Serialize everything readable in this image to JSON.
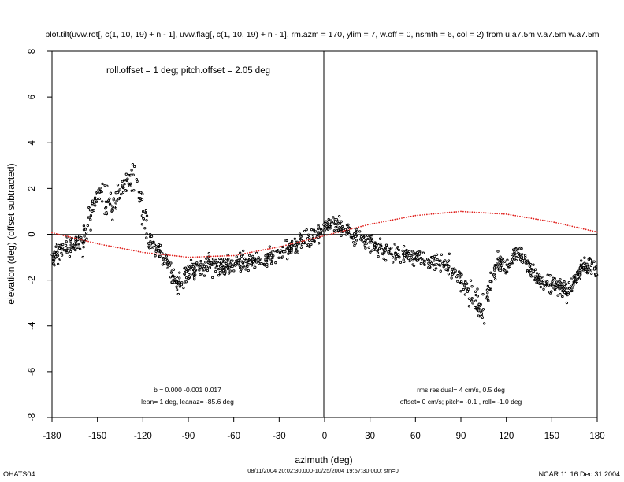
{
  "chart_data": {
    "type": "scatter",
    "title": "plot.tilt(uvw.rot[, c(1, 10, 19) + n - 1], uvw.flag[, c(1, 10, 19) + n - 1], rm.azm = 170, ylim = 7, w.off = 0, nsmth = 6, col = 2) from u.a7.5m v.a7.5m w.a7.5m",
    "xlabel": "azimuth (deg)",
    "ylabel": "elevation (deg)  (offset subtracted)",
    "xlim": [
      -180,
      180
    ],
    "ylim": [
      -8,
      8
    ],
    "xticks": [
      -180,
      -150,
      -120,
      -90,
      -60,
      -30,
      0,
      30,
      60,
      90,
      120,
      150,
      180
    ],
    "yticks": [
      -8,
      -6,
      -4,
      -2,
      0,
      2,
      4,
      6,
      8
    ],
    "annotations": {
      "offsets": "roll.offset = 1 deg; pitch.offset = 2.05 deg",
      "coef": "b =  0.000 -0.001  0.017",
      "lean": "lean= 1 deg, leanaz= -85.6 deg",
      "rms": "rms residual= 4 cm/s, 0.5 deg",
      "offset_line": "offset= 0 cm/s; pitch= -0.1 , roll= -1.0 deg"
    },
    "footer": {
      "left": "OHATS04",
      "center": "08/11/2004 20:02:30.000-10/25/2004 19:57:30.000; stn=0",
      "right": "NCAR 11:16 Dec 31 2004"
    },
    "series": [
      {
        "name": "observations (smoothed trend, black points)",
        "color": "#000000",
        "x": [
          -180,
          -170,
          -160,
          -155,
          -150,
          -145,
          -140,
          -135,
          -130,
          -125,
          -120,
          -115,
          -110,
          -105,
          -100,
          -95,
          -90,
          -80,
          -70,
          -60,
          -50,
          -40,
          -30,
          -20,
          -10,
          -5,
          0,
          5,
          10,
          15,
          20,
          30,
          40,
          50,
          60,
          70,
          80,
          85,
          90,
          95,
          100,
          105,
          110,
          115,
          120,
          125,
          130,
          135,
          140,
          145,
          150,
          160,
          170,
          175,
          180
        ],
        "y": [
          -1.0,
          -0.6,
          -0.3,
          0.8,
          1.8,
          1.4,
          1.3,
          2.0,
          2.2,
          2.4,
          0.8,
          -0.3,
          -0.8,
          -1.1,
          -1.9,
          -2.2,
          -1.6,
          -1.4,
          -1.4,
          -1.3,
          -1.2,
          -1.1,
          -0.9,
          -0.5,
          -0.2,
          0.0,
          0.3,
          0.5,
          0.3,
          0.1,
          -0.1,
          -0.4,
          -0.7,
          -0.9,
          -1.0,
          -1.2,
          -1.3,
          -1.5,
          -2.0,
          -2.4,
          -2.9,
          -3.4,
          -2.0,
          -1.2,
          -1.5,
          -0.8,
          -0.9,
          -1.4,
          -1.8,
          -2.2,
          -2.1,
          -2.5,
          -1.5,
          -1.4,
          -1.6
        ]
      },
      {
        "name": "fitted tilt curve (red dotted)",
        "color": "#e0201c",
        "x": [
          -180,
          -150,
          -120,
          -90,
          -60,
          -30,
          0,
          30,
          60,
          90,
          120,
          150,
          180
        ],
        "y": [
          0.07,
          -0.41,
          -0.79,
          -1.0,
          -0.93,
          -0.55,
          -0.06,
          0.44,
          0.82,
          1.0,
          0.88,
          0.55,
          0.1
        ]
      }
    ]
  }
}
